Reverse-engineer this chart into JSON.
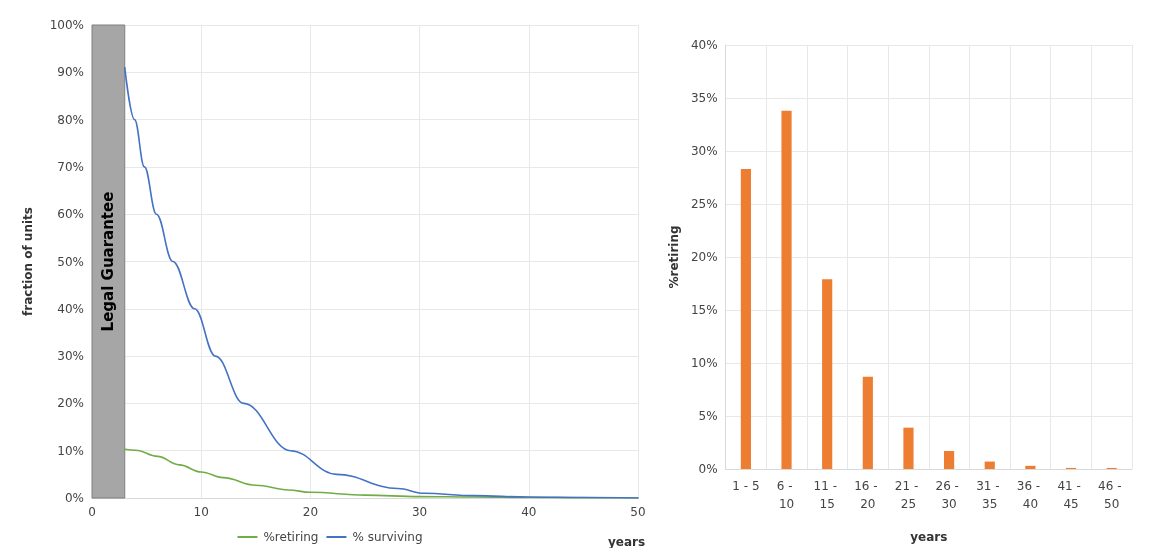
{
  "chart_data": [
    {
      "type": "line",
      "xlabel": "years",
      "ylabel": "fraction of units",
      "xlim": [
        0,
        50
      ],
      "xticks": [
        0,
        10,
        20,
        30,
        40,
        50
      ],
      "ylim": [
        0,
        100
      ],
      "yticks": [
        {
          "value": 0,
          "label": "0%"
        },
        {
          "value": 10,
          "label": "10%"
        },
        {
          "value": 20,
          "label": "20%"
        },
        {
          "value": 30,
          "label": "30%"
        },
        {
          "value": 40,
          "label": "40%"
        },
        {
          "value": 50,
          "label": "50%"
        },
        {
          "value": 60,
          "label": "60%"
        },
        {
          "value": 70,
          "label": "70%"
        },
        {
          "value": 80,
          "label": "80%"
        },
        {
          "value": 90,
          "label": "90%"
        },
        {
          "value": 100,
          "label": "100%"
        }
      ],
      "grid": true,
      "legend": "bottom",
      "marker": "none",
      "line_style": "solid",
      "bands": [
        {
          "axis": "x",
          "from": 0,
          "to": 3,
          "label": "Legal Guarantee",
          "color": "#a6a6a6"
        }
      ],
      "series": [
        {
          "name": "%retiring",
          "color": "#70ad47",
          "x": [
            3,
            4,
            6,
            8,
            10,
            12,
            15,
            18,
            20,
            25,
            30,
            35,
            40,
            50
          ],
          "values": [
            10.3,
            10.1,
            8.8,
            7,
            5.5,
            4.3,
            2.7,
            1.7,
            1.2,
            0.6,
            0.3,
            0.2,
            0.1,
            0
          ]
        },
        {
          "name": "% surviving",
          "color": "#4472c4",
          "x": [
            3,
            3.9,
            4.8,
            5.9,
            7.4,
            9.4,
            11.3,
            13.9,
            18.2,
            22.4,
            28,
            30.4,
            35,
            40,
            45,
            50
          ],
          "values": [
            91,
            80,
            70,
            60,
            50,
            40,
            30,
            20,
            10,
            5,
            2,
            1,
            0.5,
            0.2,
            0.1,
            0
          ]
        }
      ]
    },
    {
      "type": "bar",
      "xlabel": "years",
      "ylabel": "%retiring",
      "categories": [
        "1 - 5",
        "6 - 10",
        "11 - 15",
        "16 - 20",
        "21 - 25",
        "26 - 30",
        "31 - 35",
        "36 - 40",
        "41 - 45",
        "46 - 50"
      ],
      "values": [
        28.3,
        33.8,
        17.9,
        8.7,
        3.9,
        1.7,
        0.7,
        0.3,
        0.1,
        0.1
      ],
      "color": "#ed7d31",
      "ylim": [
        0,
        40
      ],
      "yticks": [
        {
          "value": 0,
          "label": "0%"
        },
        {
          "value": 5,
          "label": "5%"
        },
        {
          "value": 10,
          "label": "10%"
        },
        {
          "value": 15,
          "label": "15%"
        },
        {
          "value": 20,
          "label": "20%"
        },
        {
          "value": 25,
          "label": "25%"
        },
        {
          "value": 30,
          "label": "30%"
        },
        {
          "value": 35,
          "label": "35%"
        },
        {
          "value": 40,
          "label": "40%"
        }
      ],
      "grid": true,
      "legend": false
    }
  ]
}
